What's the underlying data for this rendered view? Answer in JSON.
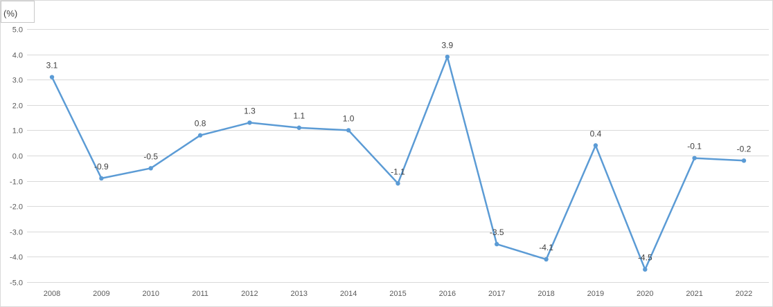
{
  "chart_data": {
    "type": "line",
    "unit_label": "(%)",
    "categories": [
      "2008",
      "2009",
      "2010",
      "2011",
      "2012",
      "2013",
      "2014",
      "2015",
      "2016",
      "2017",
      "2018",
      "2019",
      "2020",
      "2021",
      "2022"
    ],
    "series": [
      {
        "values": [
          3.1,
          -0.9,
          -0.5,
          0.8,
          1.3,
          1.1,
          1.0,
          -1.1,
          3.9,
          -3.5,
          -4.1,
          0.4,
          -4.5,
          -0.1,
          -0.2
        ]
      }
    ],
    "data_labels": [
      "3.1",
      "-0.9",
      "-0.5",
      "0.8",
      "1.3",
      "1.1",
      "1.0",
      "-1.1",
      "3.9",
      "-3.5",
      "-4.1",
      "0.4",
      "-4.5",
      "-0.1",
      "-0.2"
    ],
    "y_ticks": [
      "5.0",
      "4.0",
      "3.0",
      "2.0",
      "1.0",
      "0.0",
      "-1.0",
      "-2.0",
      "-3.0",
      "-4.0",
      "-5.0"
    ],
    "ylim": [
      -5,
      5
    ],
    "grid": true,
    "line_color": "#5b9bd5",
    "grid_color": "#d9d9d9"
  }
}
